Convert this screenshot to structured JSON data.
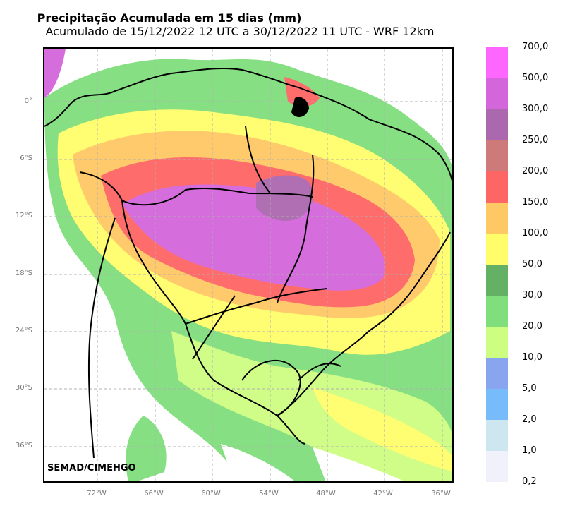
{
  "header": {
    "title": "Precipitação Acumulada em 15 dias (mm)",
    "subtitle": "Acumulado de 15/12/2022 12 UTC a 30/12/2022 11 UTC - WRF 12km"
  },
  "map": {
    "credit": "SEMAD/CIMEHGO",
    "lat_ticks": [
      "0°",
      "6°S",
      "12°S",
      "18°S",
      "24°S",
      "30°S",
      "36°S"
    ],
    "lon_ticks": [
      "72°W",
      "66°W",
      "60°W",
      "54°W",
      "48°W",
      "42°W",
      "36°W"
    ]
  },
  "legend": {
    "colors": [
      "#f1f1fb",
      "#cde6f0",
      "#77bbfb",
      "#8aa5ef",
      "#cdfd81",
      "#80de7c",
      "#64b166",
      "#fffd6a",
      "#fec865",
      "#fe6565",
      "#ce7a7a",
      "#ac68ae",
      "#d466dc",
      "#fd67fd"
    ],
    "labels": [
      "0,2",
      "1,0",
      "2,0",
      "5,0",
      "10,0",
      "20,0",
      "30,0",
      "50,0",
      "100,0",
      "150,0",
      "200,0",
      "250,0",
      "300,0",
      "500,0",
      "700,0"
    ]
  }
}
